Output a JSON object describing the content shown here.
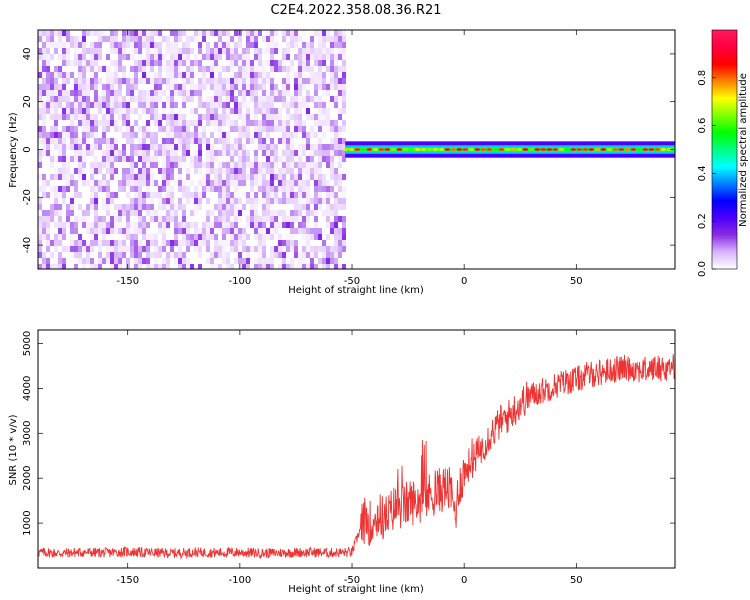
{
  "title": "C2E4.2022.358.08.36.R21",
  "chart_data": [
    {
      "type": "heatmap",
      "xlabel": "Height of straight line (km)",
      "ylabel": "Frequency (Hz)",
      "xlim": [
        -190,
        94
      ],
      "ylim": [
        -50,
        50
      ],
      "xticks": [
        -150,
        -100,
        -50,
        0,
        50
      ],
      "yticks": [
        -40,
        -20,
        0,
        20,
        40
      ],
      "grid": false,
      "regions": [
        {
          "name": "noise",
          "x_range": [
            -190,
            -53
          ],
          "y_range": [
            -50,
            50
          ],
          "amplitude_range": [
            0.0,
            0.15
          ]
        },
        {
          "name": "signal",
          "x_range": [
            -53,
            94
          ],
          "center_frequency": 0,
          "half_width": 3,
          "amplitude_range": [
            0.2,
            1.0
          ]
        }
      ],
      "colorbar": {
        "label": "Normalized spectral amplitude",
        "range": [
          0,
          1
        ],
        "ticks": [
          "0.0",
          "0.2",
          "0.4",
          "0.6",
          "0.8"
        ],
        "colors": [
          "#ffffff",
          "#d9b3ff",
          "#8a2be2",
          "#4b00ff",
          "#0000ff",
          "#0080ff",
          "#00ffff",
          "#00ff80",
          "#00ff00",
          "#80ff00",
          "#ffff00",
          "#ff8000",
          "#ff0000",
          "#ff0040",
          "#ff1a5c"
        ]
      }
    },
    {
      "type": "line",
      "xlabel": "Height of straight line (km)",
      "ylabel": "SNR (10 * v/v)",
      "xlim": [
        -190,
        94
      ],
      "ylim": [
        0,
        5300
      ],
      "xticks": [
        -150,
        -100,
        -50,
        0,
        50
      ],
      "yticks": [
        1000,
        2000,
        3000,
        4000,
        5000
      ],
      "color": "#ee3333",
      "series": [
        {
          "x": [
            -190,
            -180,
            -170,
            -160,
            -150,
            -140,
            -130,
            -120,
            -110,
            -100,
            -90,
            -80,
            -70,
            -60,
            -50,
            -46,
            -44,
            -42,
            -40,
            -38,
            -36,
            -34,
            -32,
            -30,
            -28,
            -26,
            -24,
            -22,
            -20,
            -18,
            -16,
            -14,
            -12,
            -10,
            -8,
            -6,
            -4,
            -2,
            0,
            2,
            4,
            6,
            8,
            10,
            12,
            14,
            16,
            18,
            20,
            22,
            24,
            26,
            28,
            30,
            35,
            40,
            45,
            50,
            55,
            60,
            65,
            70,
            75,
            80,
            85,
            90,
            94
          ],
          "y": [
            350,
            330,
            350,
            340,
            360,
            340,
            330,
            350,
            340,
            350,
            330,
            340,
            350,
            340,
            350,
            900,
            1100,
            1000,
            1050,
            1200,
            1100,
            1150,
            1300,
            1400,
            1350,
            1400,
            1500,
            1450,
            1500,
            1550,
            1600,
            1650,
            1700,
            1750,
            1800,
            1700,
            1200,
            1900,
            2100,
            2300,
            2400,
            2550,
            2700,
            2850,
            3000,
            3100,
            3250,
            3300,
            3400,
            3500,
            3600,
            3700,
            3800,
            3850,
            3950,
            4050,
            4150,
            4200,
            4300,
            4350,
            4400,
            4450,
            4450,
            4400,
            4450,
            4450,
            4500
          ]
        }
      ]
    }
  ]
}
